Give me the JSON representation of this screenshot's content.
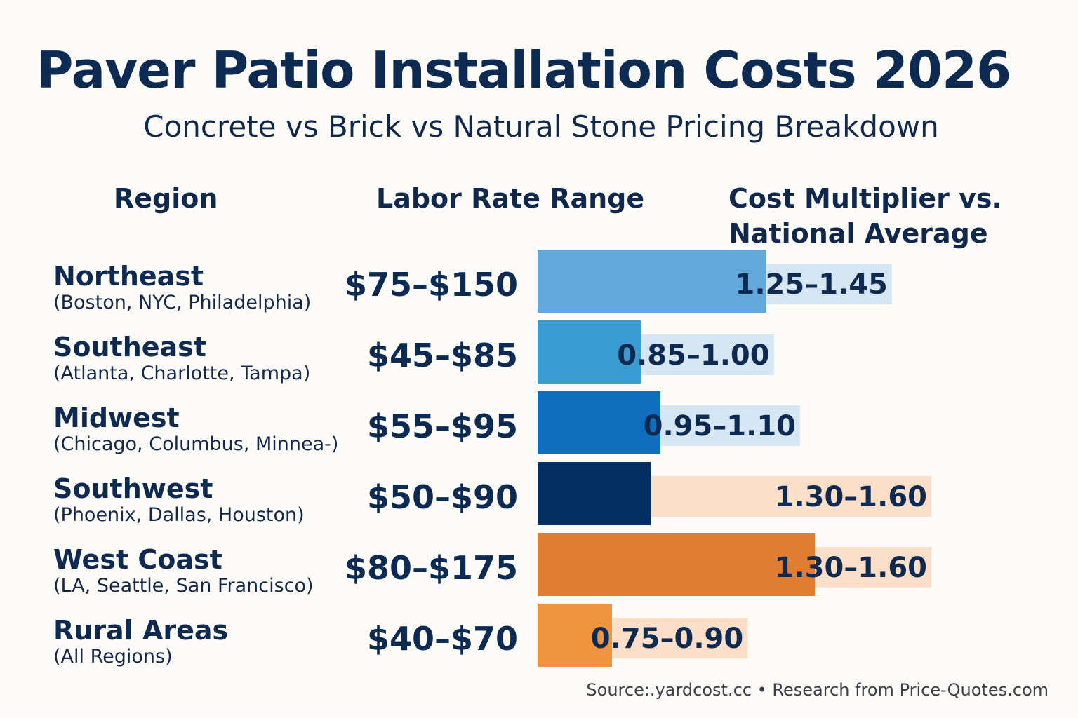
{
  "chart_data": {
    "type": "bar",
    "title": "Paver Patio Installation Costs 2026",
    "subtitle": "Concrete vs Brick vs Natural Stone Pricing Breakdown",
    "columns": {
      "region": "Region",
      "labor": "Labor Rate Range",
      "multiplier_line1": "Cost Multiplier vs.",
      "multiplier_line2": "National Average"
    },
    "rows": [
      {
        "region": "Northeast",
        "cities": "(Boston, NYC, Philadelphia)",
        "labor_rate": "$75–$150",
        "labor_min": 75,
        "labor_max": 150,
        "multiplier": "1.25–1.45",
        "mult_min": 1.25,
        "mult_max": 1.45,
        "bar_color": "#62a8db",
        "band_color": "#d6e7f3"
      },
      {
        "region": "Southeast",
        "cities": "(Atlanta, Charlotte, Tampa)",
        "labor_rate": "$45–$85",
        "labor_min": 45,
        "labor_max": 85,
        "multiplier": "0.85–1.00",
        "mult_min": 0.85,
        "mult_max": 1.0,
        "bar_color": "#3a9bd2",
        "band_color": "#d6e7f3"
      },
      {
        "region": "Midwest",
        "cities": "(Chicago, Columbus, Minnea-)",
        "labor_rate": "$55–$95",
        "labor_min": 55,
        "labor_max": 95,
        "multiplier": "0.95–1.10",
        "mult_min": 0.95,
        "mult_max": 1.1,
        "bar_color": "#0f6fbe",
        "band_color": "#d6e7f3"
      },
      {
        "region": "Southwest",
        "cities": "(Phoenix, Dallas, Houston)",
        "labor_rate": "$50–$90",
        "labor_min": 50,
        "labor_max": 90,
        "multiplier": "1.30–1.60",
        "mult_min": 1.3,
        "mult_max": 1.6,
        "bar_color": "#042f63",
        "band_color": "#fbdfc8"
      },
      {
        "region": "West Coast",
        "cities": "(LA, Seattle, San Francisco)",
        "labor_rate": "$80–$175",
        "labor_min": 80,
        "labor_max": 175,
        "multiplier": "1.30–1.60",
        "mult_min": 1.3,
        "mult_max": 1.6,
        "bar_color": "#e07d32",
        "band_color": "#fbdfc8"
      },
      {
        "region": "Rural Areas",
        "cities": "(All Regions)",
        "labor_rate": "$40–$70",
        "labor_min": 40,
        "labor_max": 70,
        "multiplier": "0.75–0.90",
        "mult_min": 0.75,
        "mult_max": 0.9,
        "bar_color": "#ee953e",
        "band_color": "#fbdfc8"
      }
    ],
    "source": "Source:.yardcost.cc • Research from Price-Quotes.com"
  }
}
